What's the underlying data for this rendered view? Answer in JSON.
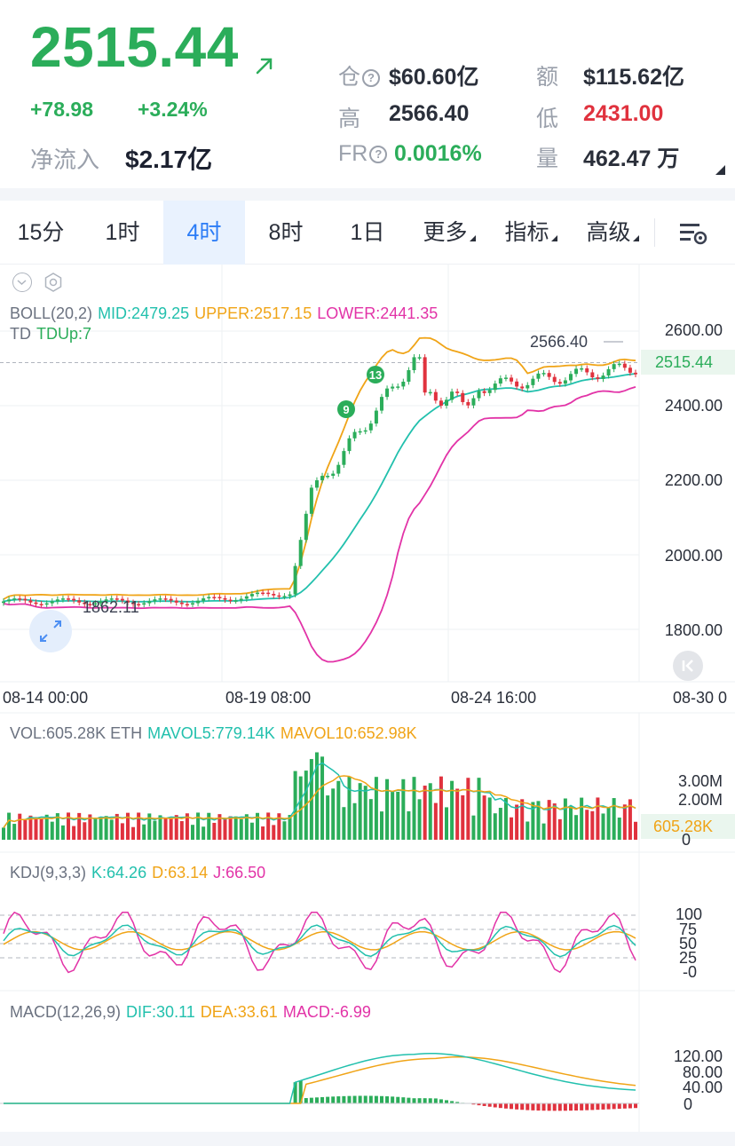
{
  "header": {
    "price": "2515.44",
    "change_abs": "+78.98",
    "change_pct": "+3.24%",
    "inflow_label": "净流入",
    "inflow_value": "$2.17亿",
    "position_label": "仓",
    "position_value": "$60.60亿",
    "turnover_label": "额",
    "turnover_value": "$115.62亿",
    "high_label": "高",
    "high_value": "2566.40",
    "low_label": "低",
    "low_value": "2431.00",
    "fr_label": "FR",
    "fr_value": "0.0016%",
    "volume_label": "量",
    "volume_value": "462.47 万",
    "qmark": "?"
  },
  "tabs": [
    {
      "label": "15分",
      "active": false
    },
    {
      "label": "1时",
      "active": false
    },
    {
      "label": "4时",
      "active": true
    },
    {
      "label": "8时",
      "active": false
    },
    {
      "label": "1日",
      "active": false
    },
    {
      "label": "更多",
      "active": false
    },
    {
      "label": "指标",
      "active": false
    },
    {
      "label": "高级",
      "active": false
    }
  ],
  "indicators": {
    "boll_name": "BOLL(20,2)",
    "boll_mid": "MID:2479.25",
    "boll_upper": "UPPER:2517.15",
    "boll_lower": "LOWER:2441.35",
    "td_name": "TD",
    "td_value": "TDUp:7",
    "vol_name": "VOL:605.28K ETH",
    "vol_mavol5": "MAVOL5:779.14K",
    "vol_mavol10": "MAVOL10:652.98K",
    "kdj_name": "KDJ(9,3,3)",
    "kdj_k": "K:64.26",
    "kdj_d": "D:63.14",
    "kdj_j": "J:66.50",
    "macd_name": "MACD(12,26,9)",
    "macd_dif": "DIF:30.11",
    "macd_dea": "DEA:33.61",
    "macd_val": "MACD:-6.99"
  },
  "price_axis": {
    "ticks": [
      "2600.00",
      "2400.00",
      "2200.00",
      "2000.00",
      "1800.00"
    ],
    "last_price": "2515.44",
    "high_marker": "2566.40",
    "low_marker": "1862.11",
    "td_markers": [
      "9",
      "13"
    ]
  },
  "time_axis": [
    "08-14 00:00",
    "08-19 08:00",
    "08-24 16:00",
    "08-30 0"
  ],
  "volume_axis": [
    "3.00M",
    "2.00M",
    "605.28K",
    "0"
  ],
  "kdj_axis": [
    "100",
    "75",
    "50",
    "25",
    "-0"
  ],
  "macd_axis": [
    "120.00",
    "80.00",
    "40.00",
    "0"
  ],
  "colors": {
    "up": "#2bad5a",
    "down": "#e0323e",
    "mid": "#22c0ad",
    "upper": "#f0a417",
    "lower": "#e233a7",
    "accent": "#2b7cf6"
  },
  "chart_data": {
    "type": "candlestick",
    "title": "",
    "boll": {
      "mid": 2479.25,
      "upper": 2517.15,
      "lower": 2441.35
    },
    "y_range": [
      1760,
      2640
    ],
    "last": 2515.44,
    "high": 2566.4,
    "low_marker": 1862.11,
    "volume": {
      "last": 605280,
      "mavol5": 779140,
      "mavol10": 652980,
      "range": [
        0,
        3500000
      ]
    },
    "kdj": {
      "k": 64.26,
      "d": 63.14,
      "j": 66.5
    },
    "macd": {
      "dif": 30.11,
      "dea": 33.61,
      "macd": -6.99
    }
  }
}
